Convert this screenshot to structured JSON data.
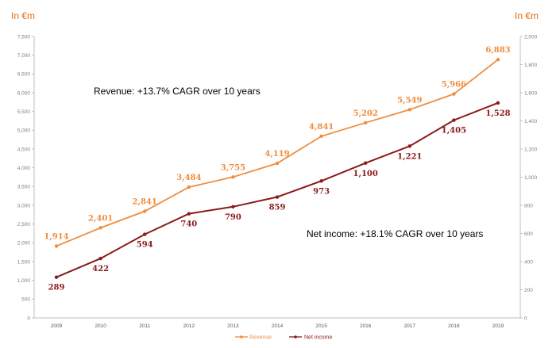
{
  "chart_data": {
    "type": "line",
    "left_axis_unit": "In €m",
    "right_axis_unit": "In €m",
    "x": [
      "2009",
      "2010",
      "2011",
      "2012",
      "2013",
      "2014",
      "2015",
      "2016",
      "2017",
      "2018",
      "2019"
    ],
    "y_left_ticks": [
      "0",
      "500",
      "1,000",
      "1,500",
      "2,000",
      "2,500",
      "3,000",
      "3,500",
      "4,000",
      "4,500",
      "5,000",
      "5,500",
      "6,000",
      "6,500",
      "7,000",
      "7,500"
    ],
    "y_right_ticks": [
      "0",
      "200",
      "400",
      "600",
      "800",
      "1,000",
      "1,200",
      "1,400",
      "1,600",
      "1,800",
      "2,000"
    ],
    "ylim_left": [
      0,
      7500
    ],
    "ylim_right": [
      0,
      2000
    ],
    "series": [
      {
        "name": "Revenue",
        "axis": "left",
        "color": "#f08c3c",
        "values": [
          1914,
          2401,
          2841,
          3484,
          3755,
          4119,
          4841,
          5202,
          5549,
          5966,
          6883
        ],
        "labels": [
          "1,914",
          "2,401",
          "2,841",
          "3,484",
          "3,755",
          "4,119",
          "4,841",
          "5,202",
          "5,549",
          "5,966",
          "6,883"
        ]
      },
      {
        "name": "Net income",
        "axis": "right",
        "color": "#8b1a1a",
        "values": [
          289,
          422,
          594,
          740,
          790,
          859,
          973,
          1100,
          1221,
          1405,
          1528
        ],
        "labels": [
          "289",
          "422",
          "594",
          "740",
          "790",
          "859",
          "973",
          "1,100",
          "1,221",
          "1,405",
          "1,528"
        ]
      }
    ],
    "annotations": [
      {
        "text": "Revenue: +13.7% CAGR over 10 years",
        "color": "#f08c3c"
      },
      {
        "text": "Net income: +18.1% CAGR over 10 years",
        "color": "#8b1a1a"
      }
    ],
    "legend_position": "bottom-center",
    "grid": false
  }
}
